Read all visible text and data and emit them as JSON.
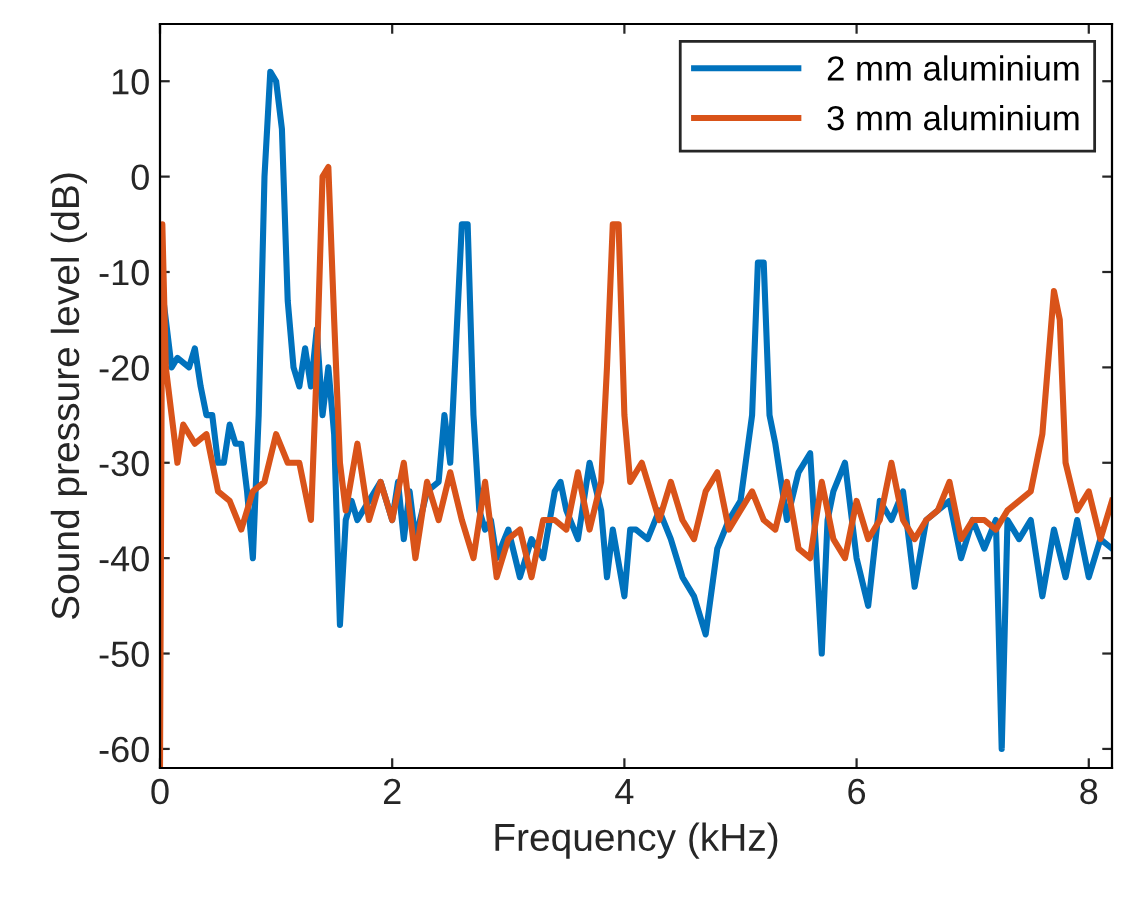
{
  "chart_data": {
    "type": "line",
    "xlabel": "Frequency (kHz)",
    "ylabel": "Sound pressure level (dB)",
    "xlim": [
      0,
      8.2
    ],
    "ylim": [
      -62,
      16
    ],
    "xticks": [
      0,
      2,
      4,
      6,
      8
    ],
    "yticks": [
      -60,
      -50,
      -40,
      -30,
      -20,
      -10,
      0,
      10
    ],
    "grid": false,
    "legend": "top right",
    "marker": "none",
    "line_style": "solid",
    "series": [
      {
        "name": "2 mm aluminium",
        "color": "#0072bd",
        "x": [
          0,
          0.05,
          0.1,
          0.15,
          0.25,
          0.3,
          0.35,
          0.4,
          0.45,
          0.5,
          0.55,
          0.6,
          0.65,
          0.7,
          0.75,
          0.8,
          0.85,
          0.9,
          0.95,
          1.0,
          1.05,
          1.1,
          1.15,
          1.2,
          1.25,
          1.3,
          1.35,
          1.4,
          1.45,
          1.5,
          1.55,
          1.6,
          1.65,
          1.7,
          1.8,
          1.9,
          2.0,
          2.05,
          2.1,
          2.15,
          2.2,
          2.3,
          2.4,
          2.45,
          2.5,
          2.6,
          2.65,
          2.7,
          2.75,
          2.8,
          2.85,
          2.9,
          3.0,
          3.1,
          3.2,
          3.3,
          3.4,
          3.45,
          3.5,
          3.6,
          3.7,
          3.8,
          3.85,
          3.9,
          4.0,
          4.05,
          4.1,
          4.2,
          4.3,
          4.4,
          4.5,
          4.6,
          4.7,
          4.8,
          4.9,
          5.0,
          5.1,
          5.15,
          5.2,
          5.25,
          5.3,
          5.4,
          5.5,
          5.6,
          5.65,
          5.7,
          5.75,
          5.8,
          5.9,
          6.0,
          6.1,
          6.2,
          6.3,
          6.4,
          6.5,
          6.6,
          6.7,
          6.8,
          6.9,
          7.0,
          7.1,
          7.2,
          7.25,
          7.3,
          7.4,
          7.5,
          7.6,
          7.7,
          7.8,
          7.9,
          8.0,
          8.1,
          8.2
        ],
        "values": [
          -10,
          -15,
          -20,
          -19,
          -20,
          -18,
          -22,
          -25,
          -25,
          -30,
          -30,
          -26,
          -28,
          -28,
          -33,
          -40,
          -25,
          0,
          11,
          10,
          5,
          -13,
          -20,
          -22,
          -18,
          -22,
          -16,
          -25,
          -20,
          -27,
          -47,
          -36,
          -34,
          -36,
          -34,
          -32,
          -36,
          -32,
          -38,
          -33,
          -38,
          -33,
          -32,
          -25,
          -30,
          -5,
          -5,
          -25,
          -35,
          -37,
          -36,
          -40,
          -37,
          -42,
          -38,
          -40,
          -33,
          -32,
          -35,
          -38,
          -30,
          -35,
          -42,
          -37,
          -44,
          -37,
          -37,
          -38,
          -35,
          -38,
          -42,
          -44,
          -48,
          -39,
          -36,
          -34,
          -25,
          -9,
          -9,
          -25,
          -28,
          -36,
          -31,
          -29,
          -39,
          -50,
          -36,
          -33,
          -30,
          -40,
          -45,
          -34,
          -36,
          -33,
          -43,
          -36,
          -35,
          -34,
          -40,
          -36,
          -39,
          -36,
          -60,
          -36,
          -38,
          -36,
          -44,
          -37,
          -42,
          -36,
          -42,
          -38,
          -39
        ]
      },
      {
        "name": "3 mm aluminium",
        "color": "#d95319",
        "x": [
          0,
          0.02,
          0.05,
          0.1,
          0.15,
          0.2,
          0.3,
          0.4,
          0.5,
          0.6,
          0.7,
          0.8,
          0.9,
          1.0,
          1.1,
          1.2,
          1.3,
          1.35,
          1.4,
          1.45,
          1.5,
          1.55,
          1.6,
          1.7,
          1.8,
          1.9,
          2.0,
          2.1,
          2.2,
          2.3,
          2.4,
          2.5,
          2.6,
          2.7,
          2.8,
          2.9,
          3.0,
          3.1,
          3.2,
          3.3,
          3.4,
          3.5,
          3.6,
          3.7,
          3.8,
          3.85,
          3.9,
          3.95,
          4.0,
          4.05,
          4.15,
          4.3,
          4.4,
          4.5,
          4.6,
          4.7,
          4.8,
          4.9,
          5.0,
          5.1,
          5.2,
          5.3,
          5.4,
          5.5,
          5.6,
          5.7,
          5.8,
          5.9,
          6.0,
          6.1,
          6.2,
          6.3,
          6.4,
          6.5,
          6.6,
          6.7,
          6.8,
          6.9,
          7.0,
          7.1,
          7.2,
          7.3,
          7.4,
          7.5,
          7.6,
          7.7,
          7.75,
          7.8,
          7.9,
          8.0,
          8.1,
          8.2
        ],
        "values": [
          -62,
          -5,
          -20,
          -25,
          -30,
          -26,
          -28,
          -27,
          -33,
          -34,
          -37,
          -33,
          -32,
          -27,
          -30,
          -30,
          -36,
          -20,
          0,
          1,
          -15,
          -30,
          -35,
          -28,
          -36,
          -32,
          -36,
          -30,
          -40,
          -32,
          -36,
          -31,
          -36,
          -40,
          -32,
          -42,
          -38,
          -37,
          -42,
          -36,
          -36,
          -37,
          -31,
          -37,
          -32,
          -20,
          -5,
          -5,
          -25,
          -32,
          -30,
          -36,
          -32,
          -36,
          -38,
          -33,
          -31,
          -37,
          -35,
          -33,
          -36,
          -37,
          -32,
          -39,
          -40,
          -32,
          -38,
          -40,
          -34,
          -38,
          -36,
          -30,
          -36,
          -38,
          -36,
          -35,
          -32,
          -38,
          -36,
          -36,
          -37,
          -35,
          -34,
          -33,
          -27,
          -12,
          -15,
          -30,
          -35,
          -33,
          -38,
          -34
        ]
      }
    ]
  }
}
